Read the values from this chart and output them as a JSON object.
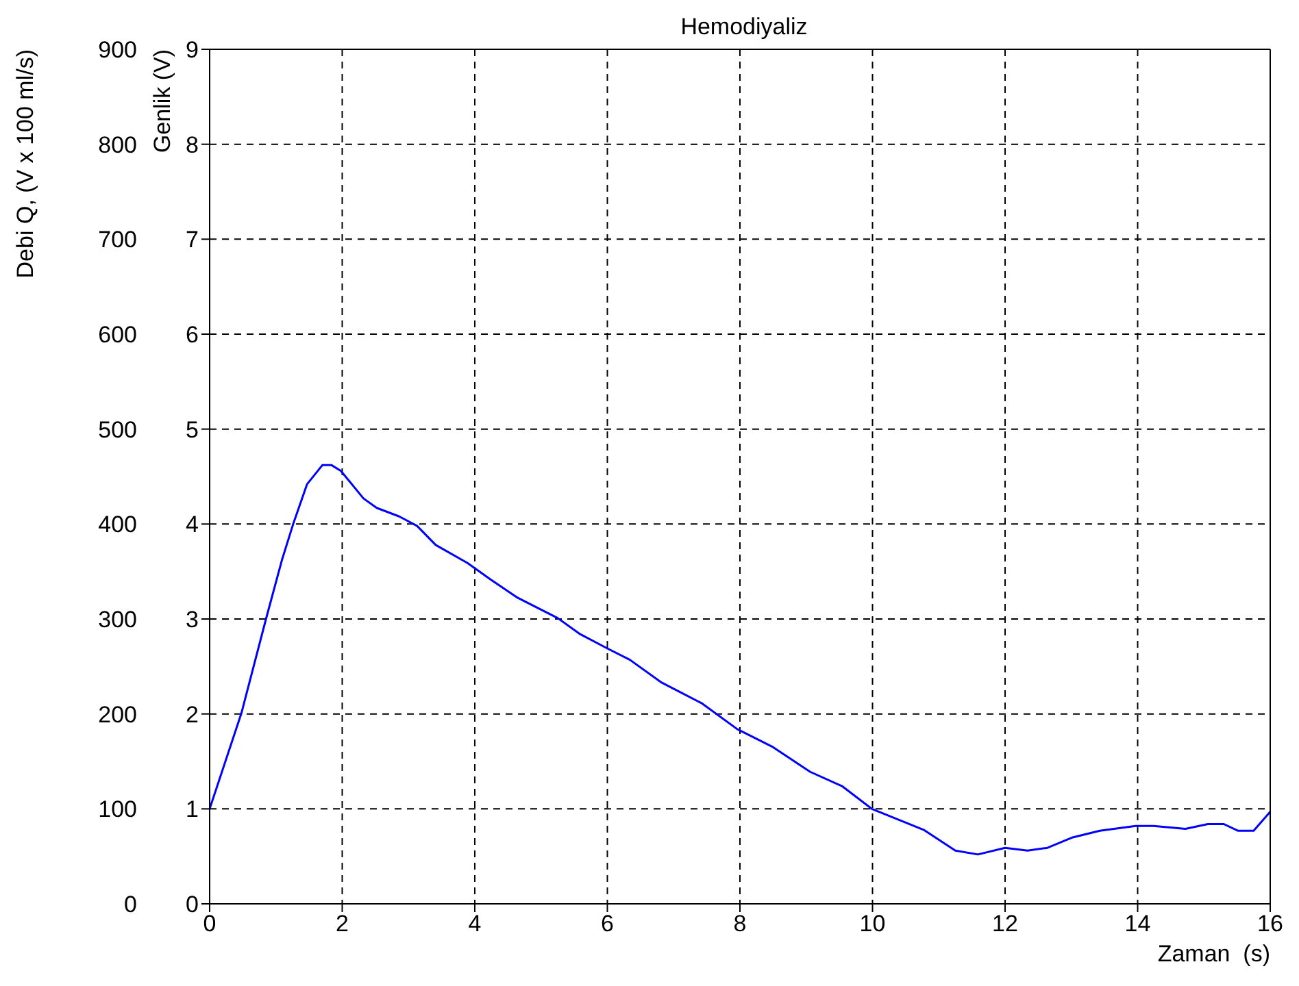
{
  "chart_data": {
    "type": "line",
    "title": "Hemodiyaliz",
    "xlabel": "Zaman  (s)",
    "ylabel": "Genlik (V)",
    "y2label": "Debi Q, (V x 100 ml/s)",
    "x": [
      0,
      0.48,
      0.85,
      1.09,
      1.26,
      1.47,
      1.7,
      1.84,
      1.98,
      2.32,
      2.52,
      2.86,
      3.13,
      3.41,
      3.89,
      4.23,
      4.63,
      5.25,
      5.59,
      6.0,
      6.34,
      6.82,
      7.43,
      7.96,
      8.5,
      9.06,
      9.54,
      9.99,
      10.77,
      11.25,
      11.59,
      12.0,
      12.34,
      12.64,
      13.02,
      13.43,
      13.97,
      14.24,
      14.72,
      15.06,
      15.3,
      15.51,
      15.75,
      16
    ],
    "series": [
      {
        "color": "#0000ff",
        "values": [
          1,
          2.01,
          3.0,
          3.62,
          4.0,
          4.42,
          4.62,
          4.62,
          4.56,
          4.27,
          4.17,
          4.08,
          3.98,
          3.78,
          3.59,
          3.42,
          3.23,
          3.01,
          2.84,
          2.69,
          2.57,
          2.33,
          2.11,
          1.84,
          1.65,
          1.39,
          1.24,
          1.0,
          0.78,
          0.56,
          0.52,
          0.59,
          0.56,
          0.59,
          0.7,
          0.77,
          0.82,
          0.82,
          0.79,
          0.84,
          0.84,
          0.77,
          0.77,
          0.97
        ]
      }
    ],
    "xlim": [
      0,
      16
    ],
    "xticks": [
      0,
      2,
      4,
      6,
      8,
      10,
      12,
      14,
      16
    ],
    "ylim": [
      0,
      9
    ],
    "yticks": [
      0,
      1,
      2,
      3,
      4,
      5,
      6,
      7,
      8,
      9
    ],
    "y2lim": [
      0,
      900
    ],
    "y2ticks": [
      0,
      100,
      200,
      300,
      400,
      500,
      600,
      700,
      800,
      900
    ],
    "grid": true,
    "legend": false,
    "marker": "none",
    "line_style": "solid"
  }
}
